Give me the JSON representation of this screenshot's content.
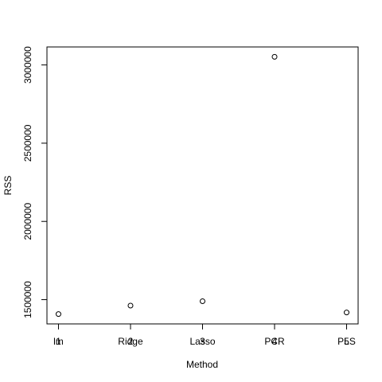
{
  "chart_data": {
    "type": "scatter",
    "x_ticks": [
      "1",
      "2",
      "3",
      "4",
      "5"
    ],
    "categories": [
      "lm",
      "Ridge",
      "Lasso",
      "PCR",
      "PLS"
    ],
    "y_ticks": [
      "1500000",
      "2000000",
      "2500000",
      "3000000"
    ],
    "y_tick_values": [
      1500000,
      2000000,
      2500000,
      3000000
    ],
    "values": [
      1408000,
      1462000,
      1490000,
      3052000,
      1418000
    ],
    "xlabel": "Method",
    "ylabel": "RSS",
    "xlim": [
      0.84,
      5.16
    ],
    "ylim": [
      1345000,
      3115000
    ],
    "grid": false,
    "legend": "none",
    "marker": "open-circle"
  }
}
